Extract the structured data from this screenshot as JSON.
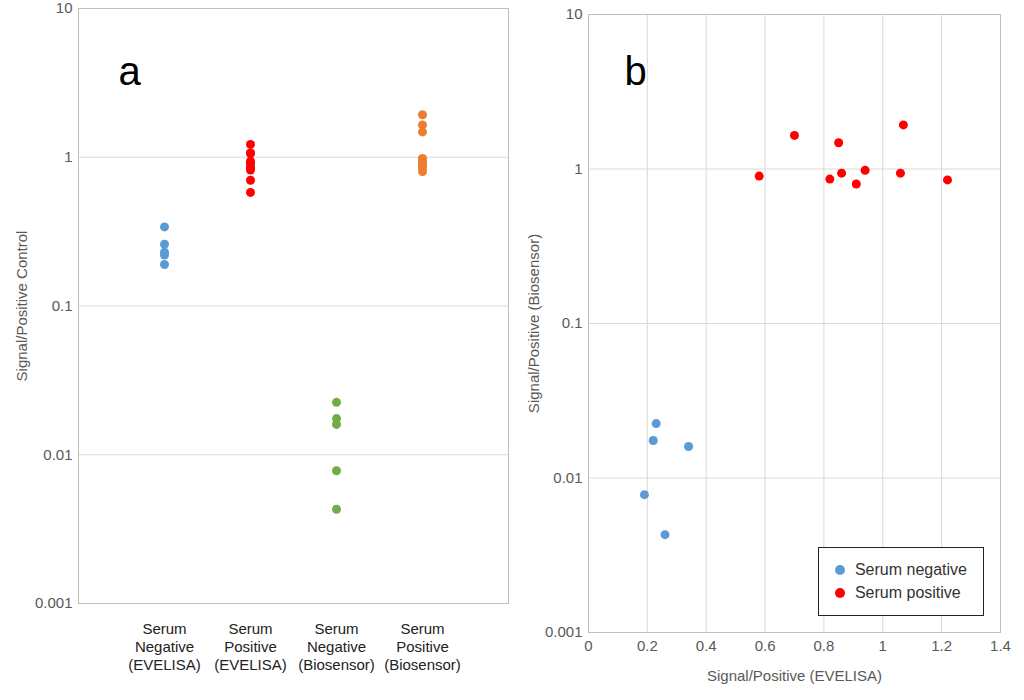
{
  "chart_data": [
    {
      "type": "strip",
      "title": "a",
      "categories": [
        "Serum Negative (EVELISA)",
        "Serum Positive (EVELISA)",
        "Serum Negative (Biosensor)",
        "Serum Positive (Biosensor)"
      ],
      "values": [
        [
          0.34,
          0.26,
          0.23,
          0.22,
          0.19
        ],
        [
          1.22,
          1.07,
          1.06,
          0.94,
          0.91,
          0.86,
          0.85,
          0.82,
          0.7,
          0.58
        ],
        [
          0.0225,
          0.0175,
          0.016,
          0.0078,
          0.0043
        ],
        [
          1.93,
          1.65,
          1.48,
          0.98,
          0.94,
          0.94,
          0.9,
          0.86,
          0.85,
          0.8
        ]
      ],
      "colors": [
        "#5b9bd5",
        "#ff0000",
        "#70ad47",
        "#ed7d31"
      ],
      "ylabel": "Signal/Positive Control",
      "ylim": [
        0.001,
        10
      ],
      "yticks": [
        0.001,
        0.01,
        0.1,
        1,
        10
      ],
      "log": "y",
      "grid": true
    },
    {
      "type": "scatter",
      "title": "b",
      "xlabel": "Signal/Positive (EVELISA)",
      "ylabel": "Signal/Positive (Biosensor)",
      "series": [
        {
          "name": "Serum negative",
          "color": "#5b9bd5",
          "x": [
            0.19,
            0.22,
            0.23,
            0.26,
            0.34
          ],
          "values": [
            0.0078,
            0.0175,
            0.0225,
            0.0043,
            0.016
          ]
        },
        {
          "name": "Serum positive",
          "color": "#ff0000",
          "x": [
            0.58,
            0.7,
            0.82,
            0.85,
            0.86,
            0.91,
            0.94,
            1.06,
            1.07,
            1.22
          ],
          "values": [
            0.9,
            1.65,
            0.86,
            1.48,
            0.94,
            0.8,
            0.98,
            0.94,
            1.93,
            0.85
          ]
        }
      ],
      "xlim": [
        0,
        1.4
      ],
      "xticks": [
        0,
        0.2,
        0.4,
        0.6,
        0.8,
        1,
        1.2,
        1.4
      ],
      "ylim": [
        0.001,
        10
      ],
      "yticks": [
        0.001,
        0.01,
        0.1,
        1,
        10
      ],
      "log": "y",
      "grid": true,
      "legend": "bottom-right"
    }
  ]
}
